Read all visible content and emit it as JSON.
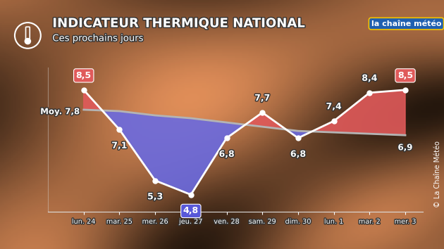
{
  "chart_data": {
    "type": "line",
    "title": "INDICATEUR THERMIQUE NATIONAL",
    "subtitle": "Ces prochains jours",
    "logo": "la chaîne météo",
    "copyright": "© La Chaîne Météo",
    "categories": [
      "lun. 24",
      "mar. 25",
      "mer. 26",
      "jeu. 27",
      "ven. 28",
      "sam. 29",
      "dim. 30",
      "lun. 1",
      "mar. 2",
      "mer. 3"
    ],
    "series": [
      {
        "color": "#ffffff",
        "marker": "o",
        "line_style": "solid",
        "values": [
          8.5,
          7.1,
          5.3,
          4.8,
          6.8,
          7.7,
          6.8,
          7.4,
          8.4,
          8.5
        ],
        "value_labels": [
          "8,5",
          "7,1",
          "5,3",
          "4,8",
          "6,8",
          "7,7",
          "6,8",
          "7,4",
          "8,4",
          "8,5"
        ]
      },
      {
        "color": "#b4b4b4",
        "line_style": "solid",
        "values": [
          7.8,
          7.75,
          7.6,
          7.5,
          7.35,
          7.2,
          7.05,
          7.0,
          6.95,
          6.9
        ],
        "value_labels": [
          "Moy. 7,8",
          null,
          null,
          null,
          null,
          null,
          null,
          null,
          null,
          "6,9"
        ]
      }
    ],
    "ylim": [
      4.2,
      9.3
    ],
    "data_labels": true,
    "tick_labels": "x",
    "grid": false
  }
}
